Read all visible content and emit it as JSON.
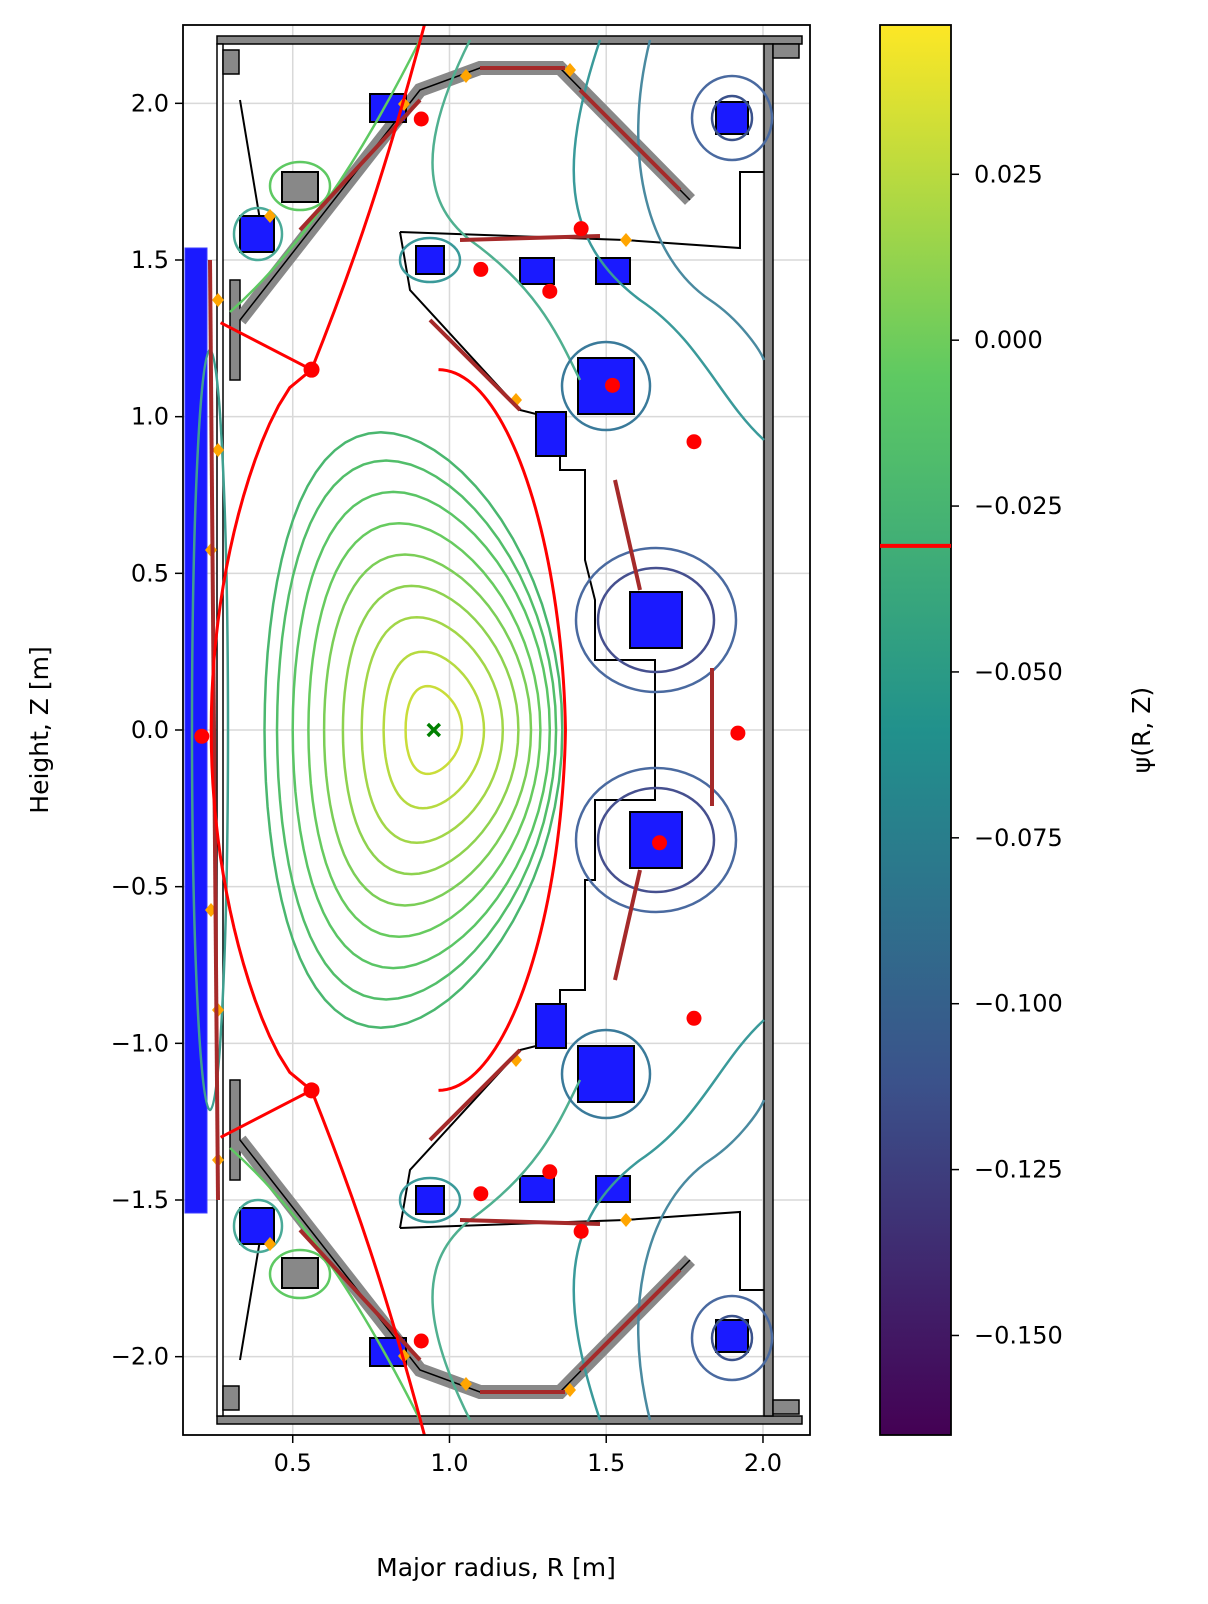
{
  "chart_data": [
    {
      "type": "contour",
      "title": "",
      "xlabel": "Major radius, R [m]",
      "ylabel": "Height, Z [m]",
      "xlim": [
        0.15,
        2.15
      ],
      "ylim": [
        -2.25,
        2.25
      ],
      "xticks": [
        0.5,
        1.0,
        1.5,
        2.0
      ],
      "xtick_labels": [
        "0.5",
        "1.0",
        "1.5",
        "2.0"
      ],
      "yticks": [
        -2.0,
        -1.5,
        -1.0,
        -0.5,
        0.0,
        0.5,
        1.0,
        1.5,
        2.0
      ],
      "ytick_labels": [
        "−2.0",
        "−1.5",
        "−1.0",
        "−0.5",
        "0.0",
        "0.5",
        "1.0",
        "1.5",
        "2.0"
      ],
      "grid": true,
      "magnetic_axis": {
        "R": 0.95,
        "Z": 0.0,
        "marker": "x",
        "color": "#007f00"
      },
      "x_points": [
        {
          "R": 0.56,
          "Z": 1.15
        },
        {
          "R": 0.56,
          "Z": -1.15
        }
      ],
      "separatrix_color": "#ff0000",
      "plasma_surfaces": [
        {
          "R_in": 0.86,
          "R_out": 1.04,
          "Z_half": 0.14
        },
        {
          "R_in": 0.79,
          "R_out": 1.11,
          "Z_half": 0.25
        },
        {
          "R_in": 0.72,
          "R_out": 1.17,
          "Z_half": 0.36
        },
        {
          "R_in": 0.66,
          "R_out": 1.22,
          "Z_half": 0.46
        },
        {
          "R_in": 0.6,
          "R_out": 1.26,
          "Z_half": 0.56
        },
        {
          "R_in": 0.55,
          "R_out": 1.29,
          "Z_half": 0.66
        },
        {
          "R_in": 0.5,
          "R_out": 1.32,
          "Z_half": 0.76
        },
        {
          "R_in": 0.45,
          "R_out": 1.34,
          "Z_half": 0.86
        },
        {
          "R_in": 0.41,
          "R_out": 1.36,
          "Z_half": 0.95
        }
      ],
      "coil_sensors": [
        {
          "R": 0.21,
          "Z": -0.02
        },
        {
          "R": 0.91,
          "Z": 1.95
        },
        {
          "R": 1.1,
          "Z": 1.47
        },
        {
          "R": 1.32,
          "Z": 1.4
        },
        {
          "R": 1.42,
          "Z": 1.6
        },
        {
          "R": 1.52,
          "Z": 1.1
        },
        {
          "R": 1.78,
          "Z": 0.92
        },
        {
          "R": 1.92,
          "Z": -0.01
        },
        {
          "R": 1.67,
          "Z": -0.36
        },
        {
          "R": 1.78,
          "Z": -0.92
        },
        {
          "R": 1.1,
          "Z": -1.48
        },
        {
          "R": 1.32,
          "Z": -1.41
        },
        {
          "R": 1.42,
          "Z": -1.6
        },
        {
          "R": 0.91,
          "Z": -1.95
        }
      ]
    },
    {
      "type": "colorbar",
      "label": "ψ(R, Z)",
      "range": [
        -0.165,
        0.0475
      ],
      "ticks": [
        0.025,
        0.0,
        -0.025,
        -0.05,
        -0.075,
        -0.1,
        -0.125,
        -0.15
      ],
      "tick_labels": [
        "0.025",
        "0.000",
        "−0.025",
        "−0.050",
        "−0.075",
        "−0.100",
        "−0.125",
        "−0.150"
      ],
      "separatrix_level": -0.031,
      "separatrix_color": "#ff0000",
      "colormap": [
        "#440154",
        "#3b528b",
        "#21918c",
        "#5ec962",
        "#fde725"
      ]
    }
  ]
}
